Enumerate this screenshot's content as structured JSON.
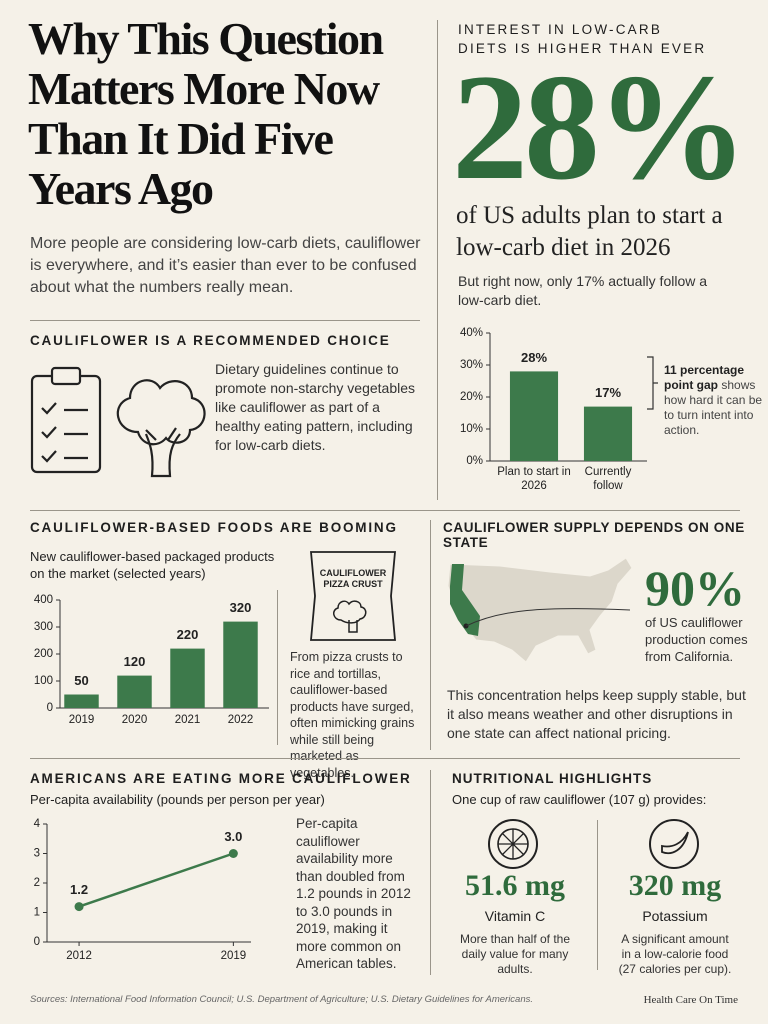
{
  "header": {
    "title": "Why This Question Matters More Now Than It Did Five Years Ago",
    "intro": "More people are considering low-carb diets, cauliflower is everywhere, and it’s easier than ever to be confused about what the numbers really mean."
  },
  "interest": {
    "kicker": "INTEREST IN LOW-CARB DIETS IS HIGHER THAN EVER",
    "big": "28%",
    "statement": "of US adults plan to start a low-carb diet in 2026",
    "note": "But right now, only 17% actually follow a low-carb diet.",
    "gap_title": "11 percentage point gap",
    "gap_text": "shows how hard it can be to turn intent into action."
  },
  "recommended": {
    "heading": "CAULIFLOWER IS A RECOMMENDED CHOICE",
    "text": "Dietary guidelines continue to promote non-starchy vegetables like cauliflower as part of a healthy eating pattern, including for low-carb diets."
  },
  "foods": {
    "heading": "CAULIFLOWER-BASED FOODS ARE BOOMING",
    "subtitle": "New cauliflower-based packaged products on the market (selected years)",
    "package_label": "CAULIFLOWER PIZZA CRUST",
    "text": "From pizza crusts to rice and tortillas, cauliflower-based products have surged, often mimicking grains while still being marketed as vegetables."
  },
  "supply": {
    "heading": "CAULIFLOWER SUPPLY DEPENDS ON ONE STATE",
    "big": "90%",
    "statement": "of US cauliflower production comes from California.",
    "text": "This concentration helps keep supply stable, but it also means weather and other disruptions in one state can affect national pricing."
  },
  "eating": {
    "heading": "AMERICANS ARE EATING MORE CAULIFLOWER",
    "subtitle": "Per-capita availability (pounds per person per year)",
    "text": "Per-capita cauliflower availability more than doubled from 1.2 pounds in 2012 to 3.0 pounds in 2019, making it more common on American tables."
  },
  "nutrition": {
    "heading": "NUTRITIONAL HIGHLIGHTS",
    "subtitle": "One cup of raw cauliflower (107 g) provides:",
    "items": [
      {
        "amount": "51.6 mg",
        "name": "Vitamin C",
        "text": "More than half of the daily value for many adults."
      },
      {
        "amount": "320 mg",
        "name": "Potassium",
        "text": "A significant amount in a low-calorie food (27 calories per cup)."
      }
    ]
  },
  "footer": {
    "sources": "Sources: International Food Information Council; U.S. Department of Agriculture; U.S. Dietary Guidelines for Americans.",
    "brand": "Health Care On Time"
  },
  "chart_data": [
    {
      "type": "bar",
      "categories": [
        "Plan to start in 2026",
        "Currently follow"
      ],
      "values": [
        28,
        17
      ],
      "value_labels": [
        "28%",
        "17%"
      ],
      "color": "#3d7a4b",
      "ylim": [
        0,
        40
      ],
      "yticks": [
        {
          "value": 0,
          "label": "0%"
        },
        {
          "value": 10,
          "label": "10%"
        },
        {
          "value": 20,
          "label": "20%"
        },
        {
          "value": 30,
          "label": "30%"
        },
        {
          "value": 40,
          "label": "40%"
        }
      ]
    },
    {
      "type": "bar",
      "categories": [
        "2019",
        "2020",
        "2021",
        "2022"
      ],
      "values": [
        50,
        120,
        220,
        320
      ],
      "color": "#3d7a4b",
      "ylim": [
        0,
        400
      ],
      "yticks": [
        0,
        100,
        200,
        300,
        400
      ]
    },
    {
      "type": "line",
      "x": [
        2012,
        2019
      ],
      "values": [
        1.2,
        3.0
      ],
      "value_labels": [
        "1.2",
        "3.0"
      ],
      "color": "#3d7a4b",
      "xlim": [
        2010.5,
        2019.8
      ],
      "xticks": [
        2012,
        2019
      ],
      "ylim": [
        0,
        4
      ],
      "yticks": [
        0,
        1,
        2,
        3,
        4
      ]
    }
  ]
}
